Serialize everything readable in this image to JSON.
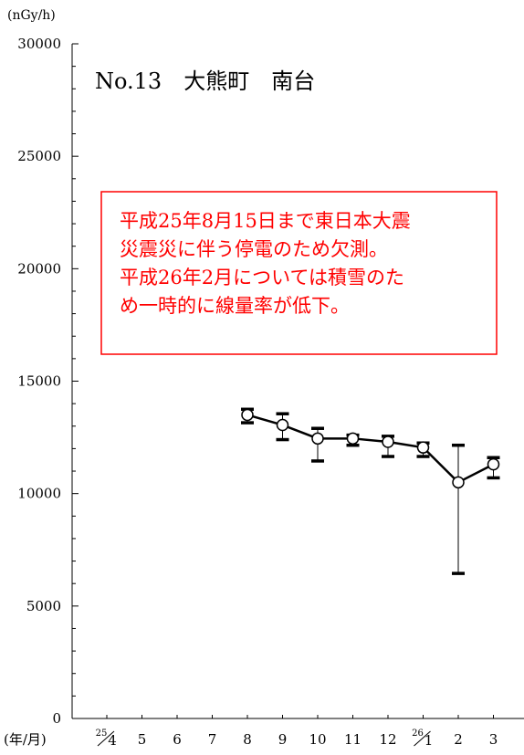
{
  "chart_data": {
    "type": "line",
    "title": "No.13　大熊町　南台",
    "ylabel": "(nGy/h)",
    "xlabel": "(年/月)",
    "ylim": [
      0,
      30000
    ],
    "yticks": [
      0,
      5000,
      10000,
      15000,
      20000,
      25000,
      30000
    ],
    "y_tick_labels": [
      "0",
      "5000",
      "10000",
      "15000",
      "20000",
      "25000",
      "30000"
    ],
    "categories": [
      "25/4",
      "5",
      "6",
      "7",
      "8",
      "9",
      "10",
      "11",
      "12",
      "26/1",
      "2",
      "3"
    ],
    "grid": false,
    "note": [
      "平成25年8月15日まで東日本大震",
      "災震災に伴う停電のため欠測。",
      "平成26年2月については積雪のた",
      "め一時的に線量率が低下。"
    ],
    "series": [
      {
        "values": [
          null,
          null,
          null,
          null,
          13500,
          13050,
          12450,
          12450,
          12300,
          12050,
          10500,
          11300
        ],
        "max": [
          null,
          null,
          null,
          null,
          13750,
          13550,
          12900,
          12600,
          12550,
          12250,
          12150,
          11600
        ],
        "min": [
          null,
          null,
          null,
          null,
          13150,
          12400,
          11450,
          12150,
          11650,
          11650,
          6450,
          10700
        ]
      }
    ],
    "colors": {
      "line": "#000000",
      "note_border": "#ff0000",
      "note_text": "#ff0000"
    }
  }
}
